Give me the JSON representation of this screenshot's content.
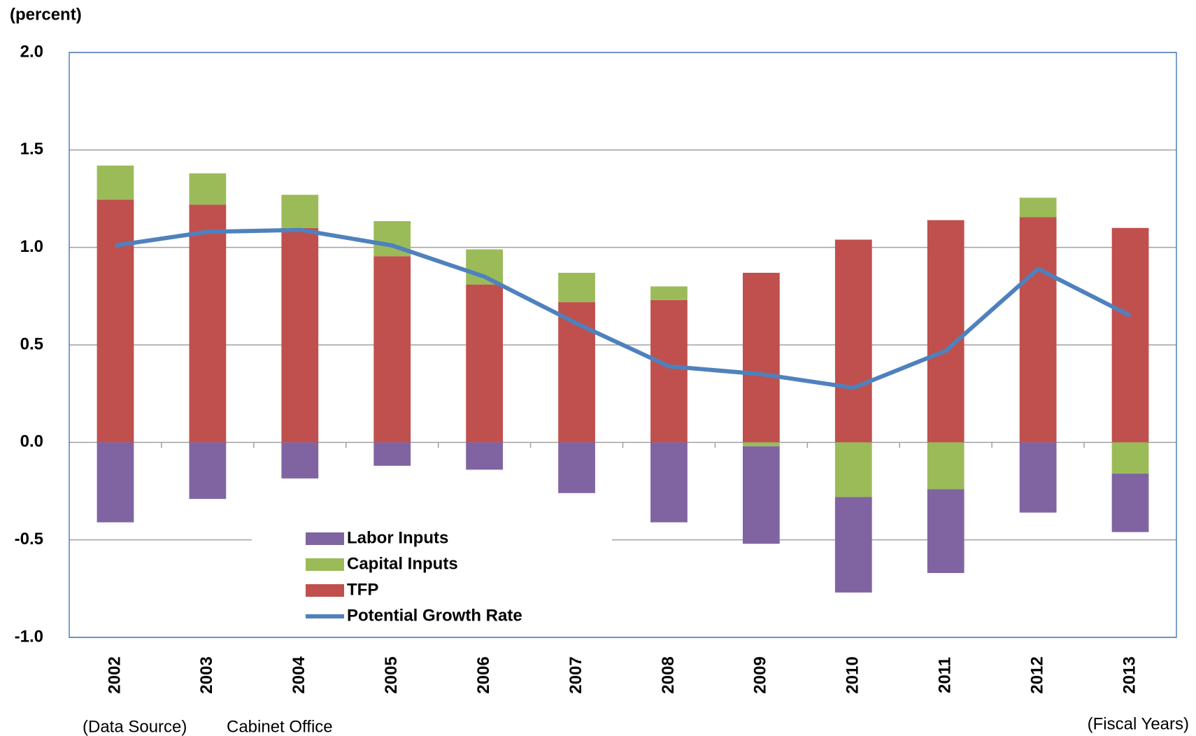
{
  "chart_data": {
    "type": "stacked-bar-line",
    "y_unit_label": "(percent)",
    "x_unit_label": "(Fiscal Years)",
    "source_label": "(Data Source)",
    "source": "Cabinet Office",
    "categories": [
      "2002",
      "2003",
      "2004",
      "2005",
      "2006",
      "2007",
      "2008",
      "2009",
      "2010",
      "2011",
      "2012",
      "2013"
    ],
    "series": [
      {
        "name": "Labor Inputs",
        "color": "#8064a2",
        "kind": "bar",
        "values": [
          -0.41,
          -0.29,
          -0.185,
          -0.12,
          -0.14,
          -0.26,
          -0.41,
          -0.5,
          -0.49,
          -0.43,
          -0.36,
          -0.3
        ]
      },
      {
        "name": "Capital Inputs",
        "color": "#9bbb59",
        "kind": "bar",
        "values": [
          0.175,
          0.16,
          0.17,
          0.18,
          0.18,
          0.15,
          0.07,
          -0.02,
          -0.28,
          -0.24,
          0.1,
          -0.16
        ]
      },
      {
        "name": "TFP",
        "color": "#c0504d",
        "kind": "bar",
        "values": [
          1.245,
          1.22,
          1.1,
          0.955,
          0.81,
          0.72,
          0.73,
          0.87,
          1.04,
          1.14,
          1.155,
          1.1
        ]
      },
      {
        "name": "Potential Growth Rate",
        "color": "#4f81bd",
        "kind": "line",
        "values": [
          1.01,
          1.08,
          1.09,
          1.01,
          0.85,
          0.61,
          0.39,
          0.35,
          0.28,
          0.47,
          0.89,
          0.65
        ]
      }
    ],
    "ylim": [
      -1,
      2
    ],
    "yticks": [
      {
        "value": -1,
        "label": "-1.0"
      },
      -0.5,
      {
        "value": 0,
        "label": "0.0"
      },
      0.5,
      {
        "value": 1,
        "label": "1.0"
      },
      1.5,
      {
        "value": 2,
        "label": "2.0"
      }
    ],
    "grid": true,
    "legend": "bottom-left"
  }
}
